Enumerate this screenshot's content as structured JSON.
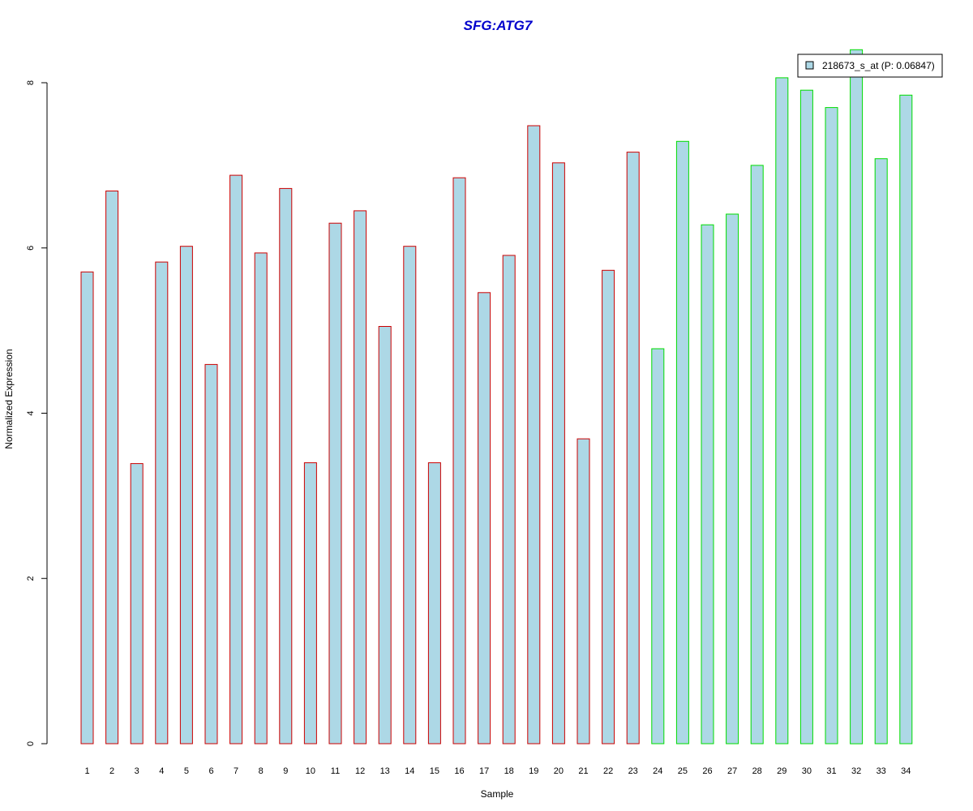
{
  "chart_data": {
    "type": "bar",
    "title": "SFG:ATG7",
    "xlabel": "Sample",
    "ylabel": "Normalized Expression",
    "ylim": [
      0,
      8
    ],
    "yticks": [
      0,
      2,
      4,
      6,
      8
    ],
    "categories": [
      "1",
      "2",
      "3",
      "4",
      "5",
      "6",
      "7",
      "8",
      "9",
      "10",
      "11",
      "12",
      "13",
      "14",
      "15",
      "16",
      "17",
      "18",
      "19",
      "20",
      "21",
      "22",
      "23",
      "24",
      "25",
      "26",
      "27",
      "28",
      "29",
      "30",
      "31",
      "32",
      "33",
      "34"
    ],
    "series": [
      {
        "name": "218673_s_at (P: 0.06847)",
        "values": [
          5.71,
          6.69,
          3.39,
          5.83,
          6.02,
          4.59,
          6.88,
          5.94,
          6.72,
          3.4,
          6.3,
          6.45,
          5.05,
          6.02,
          3.4,
          6.85,
          5.46,
          5.91,
          7.48,
          7.03,
          3.69,
          5.73,
          7.16,
          4.78,
          7.29,
          6.28,
          6.41,
          7.0,
          8.06,
          7.91,
          7.7,
          8.4,
          7.08,
          7.85
        ]
      }
    ],
    "group_border_colors": [
      "#cc0000",
      "#cc0000",
      "#cc0000",
      "#cc0000",
      "#cc0000",
      "#cc0000",
      "#cc0000",
      "#cc0000",
      "#cc0000",
      "#cc0000",
      "#cc0000",
      "#cc0000",
      "#cc0000",
      "#cc0000",
      "#cc0000",
      "#cc0000",
      "#cc0000",
      "#cc0000",
      "#cc0000",
      "#cc0000",
      "#cc0000",
      "#cc0000",
      "#cc0000",
      "#00dd00",
      "#00dd00",
      "#00dd00",
      "#00dd00",
      "#00dd00",
      "#00dd00",
      "#00dd00",
      "#00dd00",
      "#00dd00",
      "#00dd00",
      "#00dd00"
    ],
    "bar_fill": "#add8e6",
    "title_color": "#0000cc",
    "legend_position": "top-right",
    "grid": false
  }
}
